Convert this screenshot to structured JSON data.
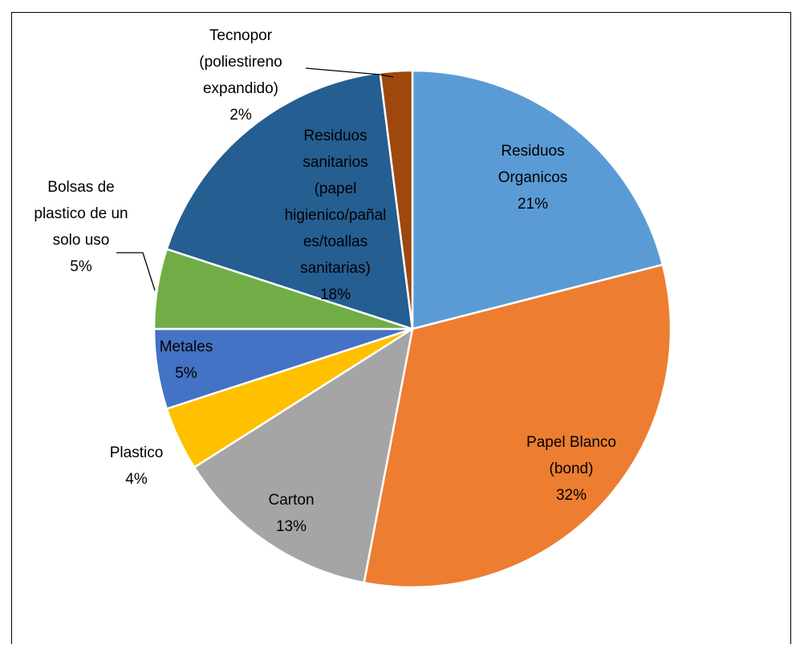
{
  "chart_data": {
    "type": "pie",
    "title": "",
    "legend": "none",
    "slices": [
      {
        "name": "Residuos Organicos",
        "value": 21,
        "label_lines": [
          "Residuos",
          "Organicos",
          "21%"
        ],
        "color": "#5B9BD5"
      },
      {
        "name": "Papel Blanco (bond)",
        "value": 32,
        "label_lines": [
          "Papel Blanco",
          "(bond)",
          "32%"
        ],
        "color": "#ED7D31"
      },
      {
        "name": "Carton",
        "value": 13,
        "label_lines": [
          "Carton",
          "13%"
        ],
        "color": "#A5A5A5"
      },
      {
        "name": "Plastico",
        "value": 4,
        "label_lines": [
          "Plastico",
          "4%"
        ],
        "color": "#FFC000"
      },
      {
        "name": "Metales",
        "value": 5,
        "label_lines": [
          "Metales",
          "5%"
        ],
        "color": "#4472C4"
      },
      {
        "name": "Bolsas de plastico de un solo uso",
        "value": 5,
        "label_lines": [
          "Bolsas de",
          "plastico de un",
          "solo uso",
          "5%"
        ],
        "color": "#70AD47"
      },
      {
        "name": "Residuos sanitarios (papel higienico/pañales/toallas sanitarias)",
        "value": 18,
        "label_lines": [
          "Residuos",
          "sanitarios",
          "(papel",
          "higienico/pañal",
          "es/toallas",
          "sanitarias)",
          "18%"
        ],
        "color": "#255E91"
      },
      {
        "name": "Tecnopor (poliestireno expandido)",
        "value": 2,
        "label_lines": [
          "Tecnopor",
          "(poliestireno",
          "expandido)",
          "2%"
        ],
        "color": "#9E480E"
      }
    ]
  }
}
